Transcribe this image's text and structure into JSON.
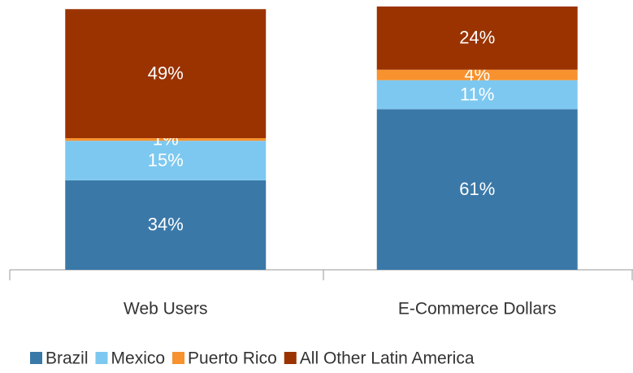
{
  "chart_data": {
    "type": "stacked_bar",
    "categories": [
      "Web Users",
      "E-Commerce Dollars"
    ],
    "series": [
      {
        "name": "Brazil",
        "color": "#3a78a8",
        "values": [
          34,
          61
        ],
        "value_labels": [
          "34%",
          "61%"
        ]
      },
      {
        "name": "Mexico",
        "color": "#7dc8f0",
        "values": [
          15,
          11
        ],
        "value_labels": [
          "15%",
          "11%"
        ]
      },
      {
        "name": "Puerto Rico",
        "color": "#f7922e",
        "values": [
          1,
          4
        ],
        "value_labels": [
          "1%",
          "4%"
        ]
      },
      {
        "name": "All Other Latin America",
        "color": "#9a3300",
        "values": [
          49,
          24
        ],
        "value_labels": [
          "49%",
          "24%"
        ]
      }
    ]
  }
}
